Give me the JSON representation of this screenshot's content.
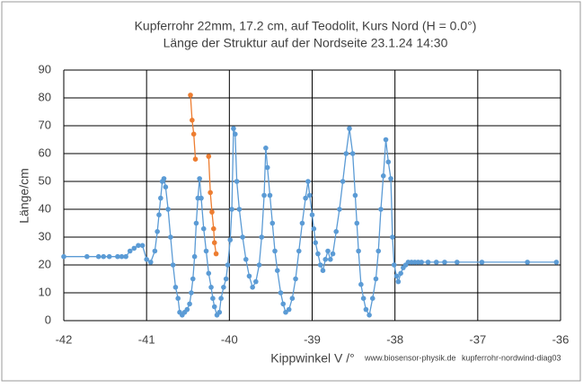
{
  "chart_data": {
    "type": "line",
    "title": "Kupferrohr 22mm, 17.2 cm, auf Teodolit, Kurs Nord (H = 0.0°)",
    "subtitle": "Länge der Struktur auf der Nordseite 23.1.24 14:30",
    "x_label": "Kippwinkel V /°",
    "y_label": "Länge/cm",
    "annotations": [
      "www.biosensor-physik.de",
      "kupferrohr-nordwind-diag03"
    ],
    "xlim": [
      -42,
      -36
    ],
    "xticks": [
      -42,
      -41,
      -40,
      -39,
      -38,
      -37,
      -36
    ],
    "ylim": [
      0,
      90
    ],
    "yticks": [
      0,
      10,
      20,
      30,
      40,
      50,
      60,
      70,
      80,
      90
    ],
    "grid": true,
    "series": [
      {
        "color": "#5b9bd5",
        "x": [
          -42,
          -41.72,
          -41.58,
          -41.52,
          -41.45,
          -41.35,
          -41.3,
          -41.25,
          -41.2,
          -41.15,
          -41.1,
          -41.05,
          -41.0,
          -40.95,
          -40.9,
          -40.87,
          -40.85,
          -40.83,
          -40.81,
          -40.79,
          -40.77,
          -40.74,
          -40.71,
          -40.68,
          -40.65,
          -40.62,
          -40.6,
          -40.57,
          -40.54,
          -40.51,
          -40.48,
          -40.46,
          -40.44,
          -40.42,
          -40.4,
          -40.38,
          -40.36,
          -40.34,
          -40.31,
          -40.28,
          -40.25,
          -40.22,
          -40.2,
          -40.18,
          -40.15,
          -40.12,
          -40.1,
          -40.07,
          -40.04,
          -40.02,
          -39.99,
          -39.97,
          -39.95,
          -39.93,
          -39.91,
          -39.88,
          -39.84,
          -39.8,
          -39.76,
          -39.72,
          -39.68,
          -39.64,
          -39.61,
          -39.58,
          -39.56,
          -39.54,
          -39.51,
          -39.48,
          -39.45,
          -39.42,
          -39.38,
          -39.35,
          -39.32,
          -39.28,
          -39.24,
          -39.2,
          -39.16,
          -39.12,
          -39.08,
          -39.05,
          -39.03,
          -39.0,
          -38.98,
          -38.96,
          -38.93,
          -38.9,
          -38.87,
          -38.84,
          -38.81,
          -38.78,
          -38.75,
          -38.71,
          -38.67,
          -38.63,
          -38.59,
          -38.55,
          -38.51,
          -38.48,
          -38.46,
          -38.44,
          -38.41,
          -38.38,
          -38.35,
          -38.31,
          -38.27,
          -38.23,
          -38.2,
          -38.17,
          -38.14,
          -38.11,
          -38.08,
          -38.05,
          -38.03,
          -38.01,
          -37.98,
          -37.96,
          -37.93,
          -37.9,
          -37.87,
          -37.84,
          -37.8,
          -37.76,
          -37.72,
          -37.68,
          -37.6,
          -37.5,
          -37.4,
          -37.25,
          -36.95,
          -36.4,
          -36.05
        ],
        "values": [
          23,
          23,
          23,
          23,
          23,
          23,
          23,
          23,
          25,
          26,
          27,
          27,
          22,
          21,
          25,
          32,
          38,
          44,
          50,
          51,
          48,
          40,
          30,
          20,
          12,
          8,
          3,
          2,
          3,
          4,
          6,
          10,
          15,
          23,
          35,
          44,
          51,
          44,
          33,
          25,
          17,
          12,
          8,
          5,
          2,
          3,
          8,
          12,
          15,
          20,
          29,
          40,
          69,
          67,
          50,
          40,
          30,
          22,
          16,
          12,
          14,
          20,
          30,
          45,
          62,
          55,
          45,
          35,
          25,
          18,
          10,
          6,
          3,
          4,
          8,
          15,
          25,
          35,
          44,
          50,
          45,
          38,
          33,
          28,
          24,
          20,
          18,
          22,
          25,
          22,
          24,
          32,
          40,
          50,
          60,
          69,
          60,
          45,
          35,
          25,
          13,
          8,
          4,
          2,
          8,
          15,
          25,
          40,
          52,
          65,
          57,
          51,
          30,
          20,
          16,
          14,
          17,
          19,
          20,
          21,
          21,
          21,
          21,
          21,
          21,
          21,
          21,
          21,
          21,
          21,
          21
        ]
      },
      {
        "color": "#ed7d31",
        "x": [
          -40.47,
          -40.45,
          -40.43,
          -40.41,
          -40.33,
          -40.25,
          -40.23,
          -40.21,
          -40.19,
          -40.18,
          -40.16
        ],
        "values": [
          81,
          72,
          67,
          58,
          null,
          59,
          46,
          39,
          33,
          28,
          24
        ]
      }
    ]
  }
}
